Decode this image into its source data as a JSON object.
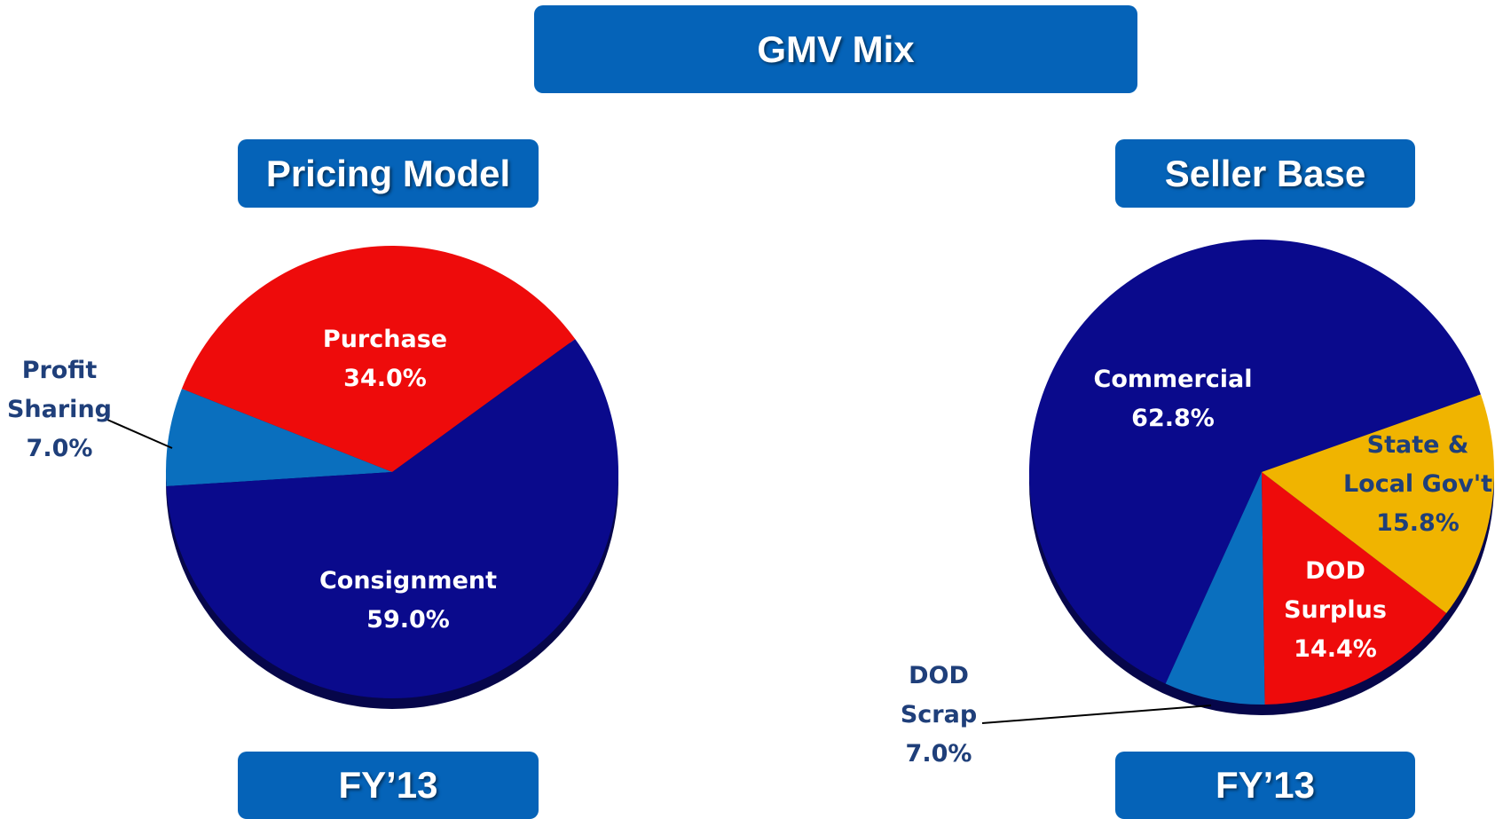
{
  "title": "GMV Mix",
  "chart_data": [
    {
      "type": "pie",
      "title": "Pricing Model",
      "subtitle": "FY’13",
      "categories": [
        "Purchase",
        "Profit Sharing",
        "Consignment"
      ],
      "values": [
        34.0,
        7.0,
        59.0
      ],
      "value_labels": [
        "34.0%",
        "7.0%",
        "59.0%"
      ],
      "colors": [
        "#ee0b0b",
        "#0a6fbe",
        "#0a0a8c"
      ]
    },
    {
      "type": "pie",
      "title": "Seller Base",
      "subtitle": "FY’13",
      "categories": [
        "Commercial",
        "DOD Scrap",
        "DOD Surplus",
        "State & Local Gov't"
      ],
      "values": [
        62.8,
        7.0,
        14.4,
        15.8
      ],
      "value_labels": [
        "62.8%",
        "7.0%",
        "14.4%",
        "15.8%"
      ],
      "colors": [
        "#0a0a8c",
        "#0a6fbe",
        "#ee0b0b",
        "#f0b400"
      ]
    }
  ]
}
